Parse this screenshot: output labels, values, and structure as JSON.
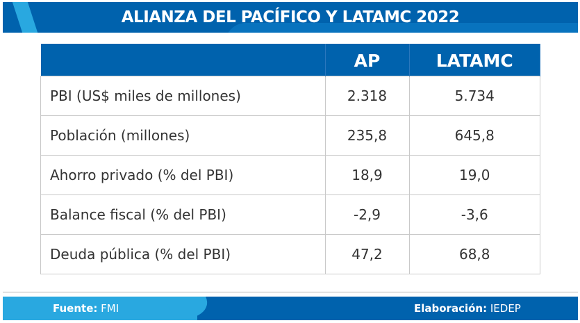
{
  "title": "ALIANZA DEL PACÍFICO Y LATAMC 2022",
  "table": {
    "headers": [
      "",
      "AP",
      "LATAMC"
    ],
    "rows": [
      {
        "label": "PBI (US$ miles de millones)",
        "ap": "2.318",
        "latamc": "5.734"
      },
      {
        "label": "Población (millones)",
        "ap": "235,8",
        "latamc": "645,8"
      },
      {
        "label": "Ahorro privado (% del PBI)",
        "ap": "18,9",
        "latamc": "19,0"
      },
      {
        "label": "Balance fiscal (% del PBI)",
        "ap": "-2,9",
        "latamc": "-3,6"
      },
      {
        "label": "Deuda pública (% del PBI)",
        "ap": "47,2",
        "latamc": "68,8"
      }
    ]
  },
  "footer": {
    "source_label": "Fuente:",
    "source_value": "FMI",
    "credit_label": "Elaboración:",
    "credit_value": "IEDEP"
  }
}
